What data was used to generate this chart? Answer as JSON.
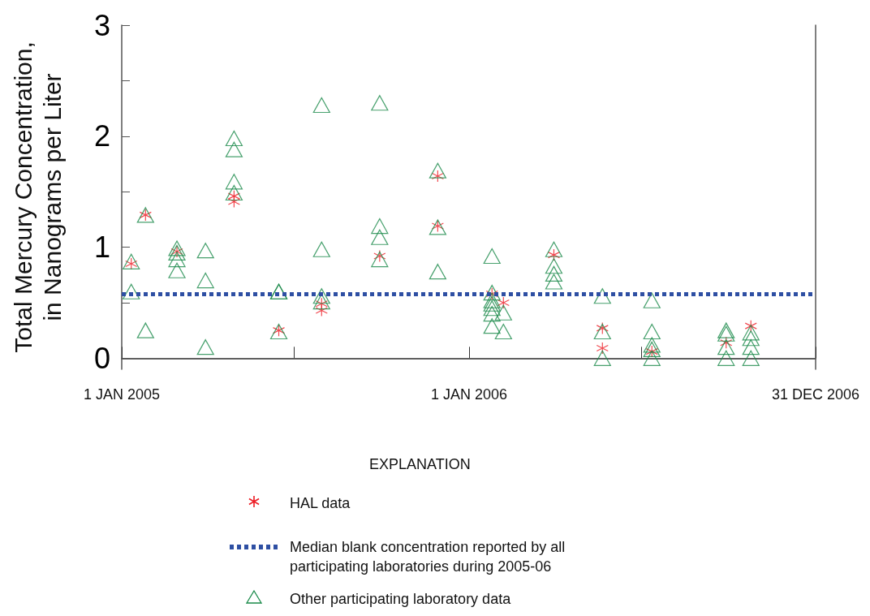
{
  "chart_data": {
    "type": "scatter",
    "ylabel": "Total Mercury Concentration, in Nanograms per Liter",
    "legend_title": "EXPLANATION",
    "xlim": [
      "2005-01-01",
      "2006-12-31"
    ],
    "xticks": [
      {
        "value": "2005-01-01",
        "label": "1 JAN 2005"
      },
      {
        "value": "2005-07-01",
        "label": null
      },
      {
        "value": "2006-01-01",
        "label": "1 JAN 2006"
      },
      {
        "value": "2006-07-01",
        "label": null
      },
      {
        "value": "2006-12-31",
        "label": "31 DEC 2006"
      }
    ],
    "ylim": [
      -0.1,
      3
    ],
    "yticks": [
      0,
      {
        "value": 0.5,
        "label": null
      },
      1,
      {
        "value": 1.5,
        "label": null
      },
      2,
      {
        "value": 2.5,
        "label": null
      },
      3
    ],
    "grid": false,
    "legend": "bottom",
    "series": [
      {
        "name": "HAL data",
        "color": "#ed1c24",
        "marker": "cross",
        "x": [
          "2005-01-11",
          "2005-01-26",
          "2005-02-28",
          "2005-04-29",
          "2005-04-29",
          "2005-06-15",
          "2005-07-30",
          "2005-07-30",
          "2005-09-29",
          "2005-11-29",
          "2005-11-29",
          "2006-01-25",
          "2006-02-06",
          "2006-03-31",
          "2006-05-21",
          "2006-05-21",
          "2006-07-12",
          "2006-09-28",
          "2006-10-24"
        ],
        "values": [
          0.85,
          1.29,
          0.96,
          1.46,
          1.41,
          0.25,
          0.49,
          0.43,
          0.92,
          1.64,
          1.19,
          0.58,
          0.5,
          0.93,
          0.27,
          0.09,
          0.06,
          0.14,
          0.29
        ]
      },
      {
        "name": "Other participating laboratory data",
        "color": "#1a8a4a",
        "marker": "triangle",
        "x": [
          "2005-01-11",
          "2005-01-11",
          "2005-01-26",
          "2005-01-26",
          "2005-02-28",
          "2005-02-28",
          "2005-02-28",
          "2005-02-28",
          "2005-03-30",
          "2005-03-30",
          "2005-03-30",
          "2005-04-29",
          "2005-04-29",
          "2005-04-29",
          "2005-04-29",
          "2005-06-15",
          "2005-06-15",
          "2005-06-15",
          "2005-07-30",
          "2005-07-30",
          "2005-07-30",
          "2005-07-30",
          "2005-09-29",
          "2005-09-29",
          "2005-09-29",
          "2005-09-29",
          "2005-11-29",
          "2005-11-29",
          "2005-11-29",
          "2006-01-25",
          "2006-01-25",
          "2006-01-25",
          "2006-01-25",
          "2006-01-25",
          "2006-01-25",
          "2006-01-25",
          "2006-02-06",
          "2006-02-06",
          "2006-03-31",
          "2006-03-31",
          "2006-03-31",
          "2006-03-31",
          "2006-05-21",
          "2006-05-21",
          "2006-05-21",
          "2006-07-12",
          "2006-07-12",
          "2006-07-12",
          "2006-07-12",
          "2006-07-12",
          "2006-09-28",
          "2006-09-28",
          "2006-09-28",
          "2006-09-28",
          "2006-10-24",
          "2006-10-24",
          "2006-10-24",
          "2006-10-24"
        ],
        "values": [
          0.87,
          0.6,
          1.29,
          0.25,
          0.99,
          0.95,
          0.89,
          0.79,
          0.97,
          0.7,
          0.1,
          1.98,
          1.88,
          1.59,
          1.49,
          0.6,
          0.6,
          0.24,
          2.28,
          0.98,
          0.56,
          0.51,
          2.3,
          1.19,
          1.09,
          0.89,
          1.69,
          1.18,
          0.78,
          0.92,
          0.59,
          0.52,
          0.49,
          0.45,
          0.4,
          0.29,
          0.41,
          0.24,
          0.98,
          0.83,
          0.76,
          0.69,
          0.56,
          0.24,
          0.0,
          0.52,
          0.24,
          0.12,
          0.08,
          0.0,
          0.25,
          0.22,
          0.1,
          0.0,
          0.23,
          0.18,
          0.1,
          0.0
        ]
      }
    ],
    "ref_lines": [
      {
        "axis": "y",
        "value": 0.58,
        "label": "Median blank concentration reported by all participating laboratories during 2005-06",
        "color": "#2e4fa3",
        "line_style": "dotted"
      }
    ]
  }
}
